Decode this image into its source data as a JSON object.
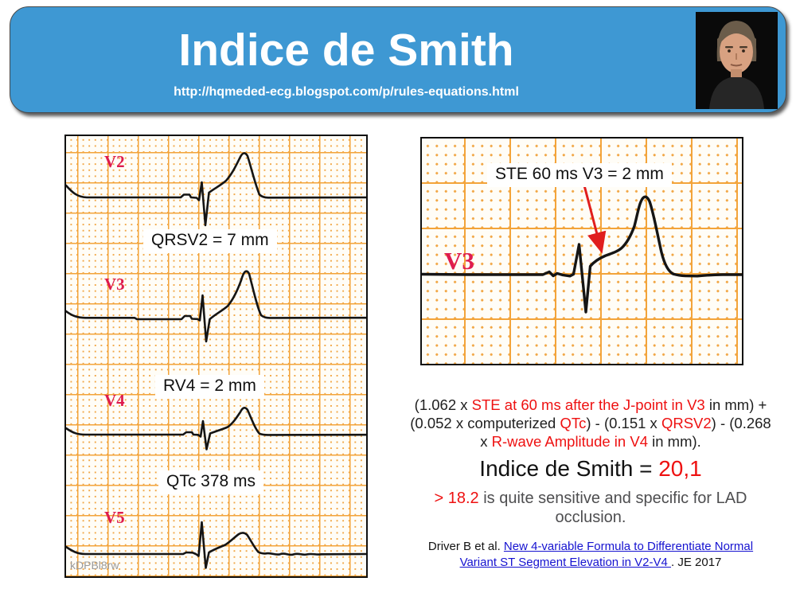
{
  "header": {
    "title": "Indice de Smith",
    "url": "http://hqmeded-ecg.blogspot.com/p/rules-equations.html",
    "banner_color": "#3E98D3",
    "photo_alt": "presenter headshot"
  },
  "left_ecg": {
    "leads": [
      "V2",
      "V3",
      "V4",
      "V5"
    ],
    "annotations": [
      "QRSV2 = 7 mm",
      "RV4 = 2 mm",
      "QTc 378 ms"
    ],
    "watermark": "kDPBl8rw",
    "lead_label_color": "#DE1C4E",
    "grid_color": "#F3A43A"
  },
  "right_ecg": {
    "lead": "V3",
    "annotation": "STE 60 ms V3 = 2 mm",
    "arrow_color": "#E01E1E"
  },
  "formula": {
    "segments": [
      {
        "text": "(1.062 x "
      },
      {
        "text": "STE at 60 ms after the J-point in V3",
        "style": "red"
      },
      {
        "text": " in mm) +"
      },
      {
        "br": true
      },
      {
        "text": "(0.052 x computerized "
      },
      {
        "text": "QTc",
        "style": "red"
      },
      {
        "text": ") - (0.151 x "
      },
      {
        "text": "QRSV2",
        "style": "red"
      },
      {
        "text": ") - (0.268"
      },
      {
        "br": true
      },
      {
        "text": "x "
      },
      {
        "text": "R-wave Amplitude in V4",
        "style": "red"
      },
      {
        "text": " in mm)."
      }
    ]
  },
  "result": {
    "segments": [
      {
        "text": "Indice de Smith =  "
      },
      {
        "text": "20,1",
        "style": "red"
      }
    ]
  },
  "interpretation": {
    "segments": [
      {
        "text": "> 18.2",
        "style": "red"
      },
      {
        "text": " is quite sensitive and specific for LAD"
      },
      {
        "br": true
      },
      {
        "text": "occlusion."
      }
    ]
  },
  "citation": {
    "segments": [
      {
        "text": "Driver B et al. "
      },
      {
        "text": "New 4-variable Formula to Differentiate Normal",
        "style": "link",
        "name": "citation-link"
      },
      {
        "br": true
      },
      {
        "text": "Variant ST Segment Elevation in V2-V4 ",
        "style": "link",
        "name": "citation-link"
      },
      {
        "text": ". JE 2017"
      }
    ]
  },
  "colors": {
    "accent_red": "#EE1111",
    "link_blue": "#1512D0"
  }
}
